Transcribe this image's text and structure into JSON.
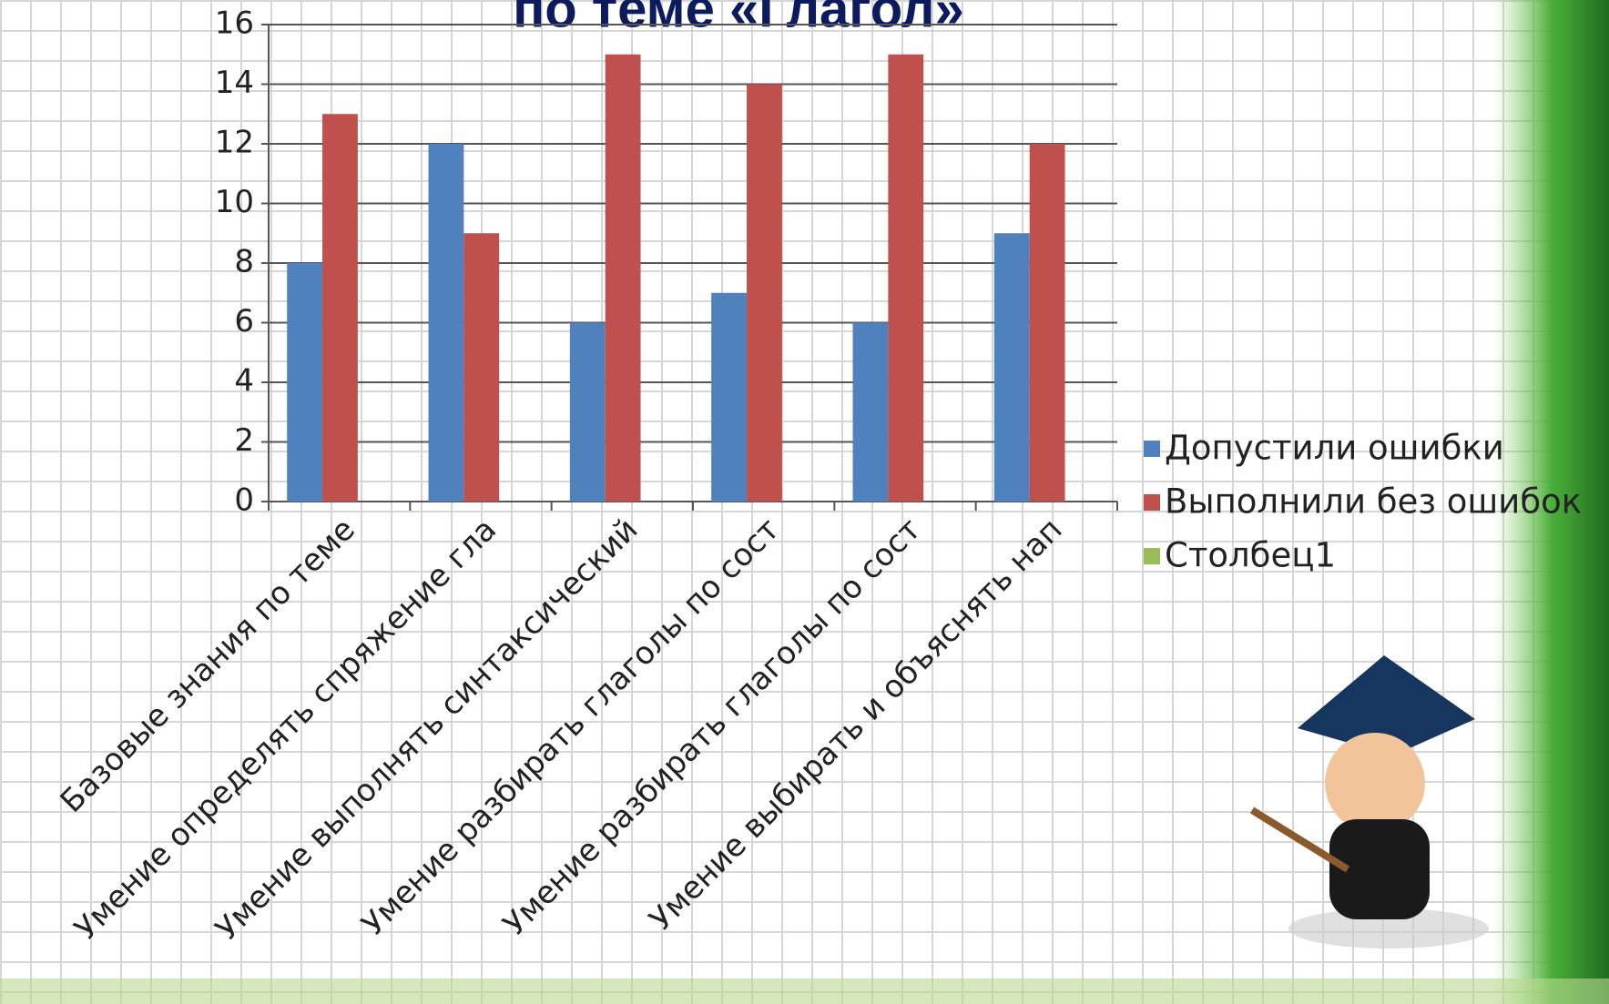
{
  "chart_data": {
    "type": "bar",
    "title": "по теме «Глагол»",
    "categories": [
      "Базовые знания по теме",
      "Умение определять спряжение гла",
      "Умение выполнять синтаксический",
      "Умение разбирать глаголы по сост",
      "Умение разбирать глаголы по сост",
      "Умение выбирать и объяснять нап"
    ],
    "series": [
      {
        "name": "Допустили ошибки",
        "color": "#4f81bd",
        "values": [
          8,
          12,
          6,
          7,
          6,
          9
        ]
      },
      {
        "name": "Выполнили без ошибок",
        "color": "#c0504d",
        "values": [
          13,
          9,
          15,
          14,
          15,
          12
        ]
      },
      {
        "name": "Столбец1",
        "color": "#9bbb59",
        "values": [
          null,
          null,
          null,
          null,
          null,
          null
        ]
      }
    ],
    "ylim": [
      0,
      16
    ],
    "yticks": [
      0,
      2,
      4,
      6,
      8,
      10,
      12,
      14,
      16
    ],
    "grid": true,
    "legend": "right"
  }
}
